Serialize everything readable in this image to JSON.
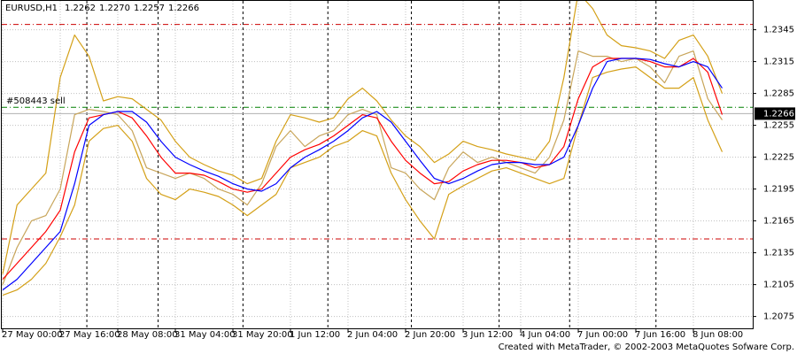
{
  "chart_data": {
    "type": "line",
    "symbol": "EURUSD,H1",
    "ohlc": [
      1.2262,
      {
        "value": 1.227,
        "label": "1.2270"
      },
      1.2257,
      1.2266
    ],
    "current_price": 1.2266,
    "order": {
      "label": "#508443 sell",
      "price": 1.2272,
      "color": "#008000"
    },
    "levels": [
      1.235,
      1.2148
    ],
    "level_color": "#cc0000",
    "footer": "Created with MetaTrader, © 2002-2003 MetaQuotes Sofware Corp.",
    "categories": [
      "27 May 00:00",
      null,
      null,
      null,
      "27 May 16:00",
      null,
      null,
      null,
      "28 May 08:00",
      null,
      null,
      null,
      "31 May 04:00",
      null,
      null,
      null,
      "31 May 20:00",
      null,
      null,
      null,
      "1 Jun 12:00",
      null,
      null,
      null,
      "2 Jun 04:00",
      null,
      null,
      null,
      "2 Jun 20:00",
      null,
      null,
      null,
      "3 Jun 12:00",
      null,
      null,
      null,
      "4 Jun 04:00",
      null,
      null,
      null,
      "7 Jun 00:00",
      null,
      null,
      null,
      "7 Jun 16:00",
      null,
      null,
      null,
      "8 Jun 08:00",
      null,
      null
    ],
    "ylim": [
      1.2063,
      1.2373
    ],
    "yticks": [
      1.2075,
      1.2105,
      1.2135,
      1.2165,
      1.2195,
      1.2225,
      1.2255,
      1.2285,
      1.2315,
      1.2345
    ],
    "grid": true,
    "series": [
      {
        "color": "#d4a017",
        "values": [
          1.2115,
          1.218,
          1.2195,
          1.221,
          1.23,
          1.234,
          1.232,
          1.2278,
          1.2282,
          1.228,
          1.227,
          1.226,
          1.224,
          1.2225,
          1.2218,
          1.2212,
          1.2208,
          1.22,
          1.2205,
          1.224,
          1.2265,
          1.2262,
          1.2258,
          1.2262,
          1.228,
          1.229,
          1.2278,
          1.226,
          1.2245,
          1.2235,
          1.222,
          1.2228,
          1.224,
          1.2235,
          1.2232,
          1.2228,
          1.2225,
          1.2222,
          1.224,
          1.23,
          1.238,
          1.2365,
          1.234,
          1.233,
          1.2328,
          1.2325,
          1.2318,
          1.2335,
          1.234,
          1.232,
          1.2285
        ]
      },
      {
        "color": "#d4a017",
        "values": [
          1.2095,
          1.21,
          1.211,
          1.2125,
          1.215,
          1.218,
          1.224,
          1.2252,
          1.2255,
          1.224,
          1.2205,
          1.219,
          1.2185,
          1.2195,
          1.2192,
          1.2188,
          1.218,
          1.217,
          1.218,
          1.219,
          1.2215,
          1.222,
          1.2225,
          1.2235,
          1.224,
          1.225,
          1.2245,
          1.221,
          1.2185,
          1.2165,
          1.2148,
          1.219,
          1.2198,
          1.2205,
          1.2212,
          1.2215,
          1.221,
          1.2205,
          1.22,
          1.2205,
          1.2255,
          1.23,
          1.2305,
          1.2308,
          1.231,
          1.23,
          1.229,
          1.229,
          1.23,
          1.226,
          1.223
        ]
      },
      {
        "color": "#c8a55a",
        "values": [
          1.2105,
          1.214,
          1.2165,
          1.217,
          1.2195,
          1.2265,
          1.227,
          1.2268,
          1.2265,
          1.225,
          1.2215,
          1.221,
          1.2205,
          1.221,
          1.2205,
          1.2195,
          1.219,
          1.218,
          1.22,
          1.2235,
          1.225,
          1.2235,
          1.2245,
          1.225,
          1.2265,
          1.227,
          1.2265,
          1.2215,
          1.221,
          1.2195,
          1.2185,
          1.2215,
          1.223,
          1.222,
          1.2225,
          1.222,
          1.2215,
          1.221,
          1.2225,
          1.226,
          1.2325,
          1.232,
          1.232,
          1.2315,
          1.2318,
          1.231,
          1.2295,
          1.232,
          1.2325,
          1.228,
          1.226
        ]
      },
      {
        "color": "#ff0000",
        "values": [
          1.211,
          1.2125,
          1.214,
          1.2155,
          1.2175,
          1.223,
          1.2262,
          1.2265,
          1.2268,
          1.2262,
          1.2245,
          1.2225,
          1.221,
          1.221,
          1.2208,
          1.2202,
          1.2195,
          1.2192,
          1.2195,
          1.221,
          1.2225,
          1.2232,
          1.2237,
          1.2245,
          1.2255,
          1.2265,
          1.2262,
          1.224,
          1.2222,
          1.221,
          1.22,
          1.2202,
          1.2212,
          1.2218,
          1.2222,
          1.2222,
          1.222,
          1.2215,
          1.2218,
          1.2235,
          1.228,
          1.231,
          1.2318,
          1.2318,
          1.2318,
          1.2315,
          1.231,
          1.231,
          1.2318,
          1.2305,
          1.2265
        ]
      },
      {
        "color": "#0000ff",
        "values": [
          1.21,
          1.211,
          1.2125,
          1.214,
          1.2155,
          1.22,
          1.2255,
          1.2265,
          1.2268,
          1.2268,
          1.2258,
          1.224,
          1.2225,
          1.2218,
          1.2212,
          1.2207,
          1.22,
          1.2195,
          1.2193,
          1.22,
          1.2215,
          1.2225,
          1.2232,
          1.224,
          1.225,
          1.2262,
          1.2268,
          1.2258,
          1.224,
          1.2222,
          1.2205,
          1.22,
          1.2205,
          1.2212,
          1.2218,
          1.222,
          1.222,
          1.2218,
          1.2218,
          1.2225,
          1.2255,
          1.229,
          1.2315,
          1.2318,
          1.2318,
          1.2317,
          1.2313,
          1.231,
          1.2315,
          1.231,
          1.229
        ]
      }
    ]
  }
}
